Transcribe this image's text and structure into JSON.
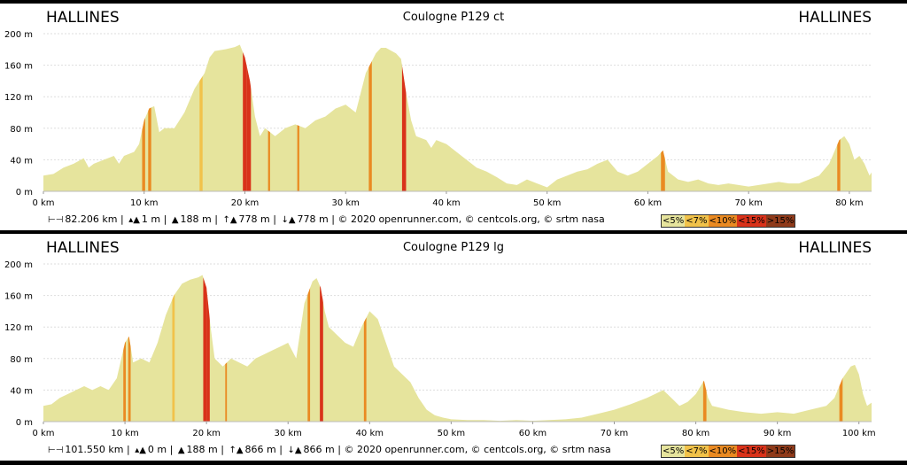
{
  "colors": {
    "lt5": "#e6e49d",
    "lt7": "#f1c24a",
    "lt10": "#ea8a22",
    "lt15": "#d9321a",
    "gt15": "#8f3a1a"
  },
  "legend": [
    "<5%",
    "<7%",
    "<10%",
    "<15%",
    ">15%"
  ],
  "chart_data": [
    {
      "type": "area",
      "title": "Coulogne P129 ct",
      "start": "HALLINES",
      "end": "HALLINES",
      "ylim": [
        0,
        200
      ],
      "xlim": [
        0,
        82.206
      ],
      "yticks": [
        "0 m",
        "40 m",
        "80 m",
        "120 m",
        "160 m",
        "200 m"
      ],
      "xticks": [
        "0 km",
        "10 km",
        "20 km",
        "30 km",
        "40 km",
        "50 km",
        "60 km",
        "70 km",
        "80 km"
      ],
      "xtick_values": [
        0,
        10,
        20,
        30,
        40,
        50,
        60,
        70,
        80
      ],
      "profile": [
        [
          0,
          20
        ],
        [
          1,
          22
        ],
        [
          2,
          30
        ],
        [
          3,
          35
        ],
        [
          4,
          42
        ],
        [
          4.5,
          30
        ],
        [
          5,
          35
        ],
        [
          6,
          40
        ],
        [
          7,
          45
        ],
        [
          7.5,
          35
        ],
        [
          8,
          45
        ],
        [
          9,
          50
        ],
        [
          9.5,
          60
        ],
        [
          10,
          90
        ],
        [
          10.5,
          105
        ],
        [
          11,
          108
        ],
        [
          11.5,
          75
        ],
        [
          12,
          80
        ],
        [
          13,
          80
        ],
        [
          14,
          100
        ],
        [
          15,
          130
        ],
        [
          16,
          150
        ],
        [
          16.5,
          170
        ],
        [
          17,
          178
        ],
        [
          18,
          180
        ],
        [
          19,
          183
        ],
        [
          19.5,
          186
        ],
        [
          20,
          170
        ],
        [
          20.5,
          140
        ],
        [
          21,
          95
        ],
        [
          21.5,
          70
        ],
        [
          22,
          80
        ],
        [
          22.5,
          75
        ],
        [
          23,
          70
        ],
        [
          24,
          80
        ],
        [
          25,
          85
        ],
        [
          26,
          80
        ],
        [
          27,
          90
        ],
        [
          28,
          95
        ],
        [
          29,
          105
        ],
        [
          30,
          110
        ],
        [
          31,
          100
        ],
        [
          32,
          150
        ],
        [
          33,
          175
        ],
        [
          33.5,
          182
        ],
        [
          34,
          182
        ],
        [
          35,
          175
        ],
        [
          35.5,
          168
        ],
        [
          36,
          125
        ],
        [
          36.5,
          90
        ],
        [
          37,
          70
        ],
        [
          38,
          65
        ],
        [
          38.5,
          55
        ],
        [
          39,
          65
        ],
        [
          40,
          60
        ],
        [
          41,
          50
        ],
        [
          42,
          40
        ],
        [
          43,
          30
        ],
        [
          44,
          25
        ],
        [
          45,
          18
        ],
        [
          46,
          10
        ],
        [
          47,
          8
        ],
        [
          48,
          15
        ],
        [
          49,
          10
        ],
        [
          50,
          5
        ],
        [
          51,
          15
        ],
        [
          52,
          20
        ],
        [
          53,
          25
        ],
        [
          54,
          28
        ],
        [
          55,
          35
        ],
        [
          56,
          40
        ],
        [
          57,
          25
        ],
        [
          58,
          20
        ],
        [
          59,
          25
        ],
        [
          60,
          35
        ],
        [
          61,
          45
        ],
        [
          61.5,
          52
        ],
        [
          62,
          25
        ],
        [
          63,
          15
        ],
        [
          64,
          12
        ],
        [
          65,
          15
        ],
        [
          66,
          10
        ],
        [
          67,
          8
        ],
        [
          68,
          10
        ],
        [
          69,
          8
        ],
        [
          70,
          6
        ],
        [
          71,
          8
        ],
        [
          72,
          10
        ],
        [
          73,
          12
        ],
        [
          74,
          10
        ],
        [
          75,
          10
        ],
        [
          76,
          15
        ],
        [
          77,
          20
        ],
        [
          78,
          35
        ],
        [
          79,
          65
        ],
        [
          79.5,
          70
        ],
        [
          80,
          60
        ],
        [
          80.5,
          40
        ],
        [
          81,
          45
        ],
        [
          81.5,
          35
        ],
        [
          82,
          20
        ],
        [
          82.206,
          24
        ]
      ],
      "grade_bands": [
        {
          "from": 9.8,
          "to": 10.1,
          "grade": "lt10"
        },
        {
          "from": 10.4,
          "to": 10.7,
          "grade": "lt10"
        },
        {
          "from": 15.5,
          "to": 15.8,
          "grade": "lt7"
        },
        {
          "from": 19.8,
          "to": 20.2,
          "grade": "lt15"
        },
        {
          "from": 20.2,
          "to": 20.6,
          "grade": "lt15"
        },
        {
          "from": 22.3,
          "to": 22.5,
          "grade": "lt10"
        },
        {
          "from": 25.2,
          "to": 25.4,
          "grade": "lt10"
        },
        {
          "from": 32.3,
          "to": 32.6,
          "grade": "lt10"
        },
        {
          "from": 35.6,
          "to": 36.0,
          "grade": "lt15"
        },
        {
          "from": 61.3,
          "to": 61.7,
          "grade": "lt10"
        },
        {
          "from": 78.8,
          "to": 79.1,
          "grade": "lt10"
        }
      ],
      "footer": {
        "distance": "82.206 km",
        "min_alt": "1 m",
        "max_alt": "188 m",
        "ascent": "778 m",
        "descent": "778 m",
        "credits": "© 2020 openrunner.com, © centcols.org, © srtm nasa"
      }
    },
    {
      "type": "area",
      "title": "Coulogne P129 lg",
      "start": "HALLINES",
      "end": "HALLINES",
      "ylim": [
        0,
        200
      ],
      "xlim": [
        0,
        101.55
      ],
      "yticks": [
        "0 m",
        "40 m",
        "80 m",
        "120 m",
        "160 m",
        "200 m"
      ],
      "xticks": [
        "0 km",
        "10 km",
        "20 km",
        "30 km",
        "40 km",
        "50 km",
        "60 km",
        "70 km",
        "80 km",
        "90 km",
        "100 km"
      ],
      "xtick_values": [
        0,
        10,
        20,
        30,
        40,
        50,
        60,
        70,
        80,
        90,
        100
      ],
      "profile": [
        [
          0,
          20
        ],
        [
          1,
          22
        ],
        [
          2,
          30
        ],
        [
          3,
          35
        ],
        [
          4,
          40
        ],
        [
          5,
          45
        ],
        [
          6,
          40
        ],
        [
          7,
          45
        ],
        [
          8,
          40
        ],
        [
          9,
          55
        ],
        [
          10,
          100
        ],
        [
          10.5,
          108
        ],
        [
          11,
          75
        ],
        [
          12,
          80
        ],
        [
          13,
          75
        ],
        [
          14,
          100
        ],
        [
          15,
          135
        ],
        [
          16,
          160
        ],
        [
          17,
          175
        ],
        [
          18,
          180
        ],
        [
          19,
          183
        ],
        [
          19.5,
          186
        ],
        [
          20,
          170
        ],
        [
          20.5,
          120
        ],
        [
          21,
          80
        ],
        [
          22,
          70
        ],
        [
          23,
          80
        ],
        [
          24,
          75
        ],
        [
          25,
          70
        ],
        [
          26,
          80
        ],
        [
          27,
          85
        ],
        [
          28,
          90
        ],
        [
          29,
          95
        ],
        [
          30,
          100
        ],
        [
          31,
          80
        ],
        [
          32,
          150
        ],
        [
          33,
          178
        ],
        [
          33.5,
          182
        ],
        [
          34,
          170
        ],
        [
          34.5,
          140
        ],
        [
          35,
          120
        ],
        [
          36,
          110
        ],
        [
          37,
          100
        ],
        [
          38,
          95
        ],
        [
          39,
          120
        ],
        [
          40,
          140
        ],
        [
          41,
          130
        ],
        [
          42,
          100
        ],
        [
          43,
          70
        ],
        [
          44,
          60
        ],
        [
          45,
          50
        ],
        [
          46,
          30
        ],
        [
          47,
          15
        ],
        [
          48,
          8
        ],
        [
          49,
          5
        ],
        [
          50,
          3
        ],
        [
          52,
          2
        ],
        [
          54,
          2
        ],
        [
          56,
          1
        ],
        [
          58,
          2
        ],
        [
          60,
          1
        ],
        [
          62,
          2
        ],
        [
          64,
          3
        ],
        [
          66,
          5
        ],
        [
          68,
          10
        ],
        [
          70,
          15
        ],
        [
          72,
          22
        ],
        [
          74,
          30
        ],
        [
          75,
          35
        ],
        [
          76,
          40
        ],
        [
          77,
          30
        ],
        [
          78,
          20
        ],
        [
          79,
          25
        ],
        [
          80,
          35
        ],
        [
          81,
          52
        ],
        [
          81.5,
          30
        ],
        [
          82,
          20
        ],
        [
          84,
          15
        ],
        [
          86,
          12
        ],
        [
          88,
          10
        ],
        [
          90,
          12
        ],
        [
          92,
          10
        ],
        [
          94,
          15
        ],
        [
          96,
          20
        ],
        [
          97,
          30
        ],
        [
          98,
          55
        ],
        [
          99,
          70
        ],
        [
          99.5,
          72
        ],
        [
          100,
          60
        ],
        [
          100.5,
          35
        ],
        [
          101,
          20
        ],
        [
          101.55,
          24
        ]
      ],
      "grade_bands": [
        {
          "from": 9.8,
          "to": 10.1,
          "grade": "lt10"
        },
        {
          "from": 10.4,
          "to": 10.7,
          "grade": "lt10"
        },
        {
          "from": 15.8,
          "to": 16.1,
          "grade": "lt7"
        },
        {
          "from": 19.6,
          "to": 20.0,
          "grade": "lt15"
        },
        {
          "from": 20.0,
          "to": 20.4,
          "grade": "lt15"
        },
        {
          "from": 22.3,
          "to": 22.5,
          "grade": "lt10"
        },
        {
          "from": 32.4,
          "to": 32.7,
          "grade": "lt10"
        },
        {
          "from": 33.9,
          "to": 34.3,
          "grade": "lt15"
        },
        {
          "from": 39.3,
          "to": 39.6,
          "grade": "lt10"
        },
        {
          "from": 80.9,
          "to": 81.3,
          "grade": "lt10"
        },
        {
          "from": 97.6,
          "to": 98.0,
          "grade": "lt10"
        }
      ],
      "footer": {
        "distance": "101.550 km",
        "min_alt": "0 m",
        "max_alt": "188 m",
        "ascent": "866 m",
        "descent": "866 m",
        "credits": "© 2020 openrunner.com, © centcols.org, © srtm nasa"
      }
    }
  ]
}
